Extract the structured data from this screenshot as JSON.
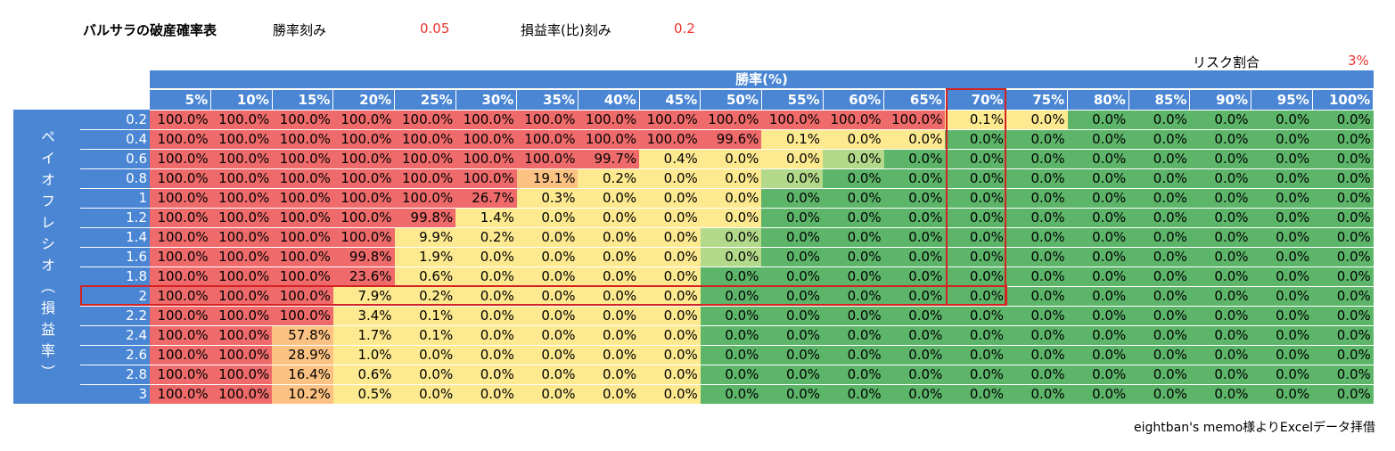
{
  "header": {
    "title": "バルサラの破産確率表",
    "win_rate_step_label": "勝率刻み",
    "win_rate_step_value": "0.05",
    "payoff_step_label": "損益率(比)刻み",
    "payoff_step_value": "0.2",
    "risk_label": "リスク割合",
    "risk_value": "3%"
  },
  "table": {
    "column_group_label": "勝率(%)",
    "row_group_label": "ペイオフレシオ（損益率）",
    "columns": [
      "5%",
      "10%",
      "15%",
      "20%",
      "25%",
      "30%",
      "35%",
      "40%",
      "45%",
      "50%",
      "55%",
      "60%",
      "65%",
      "70%",
      "75%",
      "80%",
      "85%",
      "90%",
      "95%",
      "100%"
    ],
    "rows": [
      {
        "label": "0.2",
        "values": [
          "100.0%",
          "100.0%",
          "100.0%",
          "100.0%",
          "100.0%",
          "100.0%",
          "100.0%",
          "100.0%",
          "100.0%",
          "100.0%",
          "100.0%",
          "100.0%",
          "100.0%",
          "0.1%",
          "0.0%",
          "0.0%",
          "0.0%",
          "0.0%",
          "0.0%",
          "0.0%"
        ]
      },
      {
        "label": "0.4",
        "values": [
          "100.0%",
          "100.0%",
          "100.0%",
          "100.0%",
          "100.0%",
          "100.0%",
          "100.0%",
          "100.0%",
          "100.0%",
          "99.6%",
          "0.1%",
          "0.0%",
          "0.0%",
          "0.0%",
          "0.0%",
          "0.0%",
          "0.0%",
          "0.0%",
          "0.0%",
          "0.0%"
        ]
      },
      {
        "label": "0.6",
        "values": [
          "100.0%",
          "100.0%",
          "100.0%",
          "100.0%",
          "100.0%",
          "100.0%",
          "100.0%",
          "99.7%",
          "0.4%",
          "0.0%",
          "0.0%",
          "0.0%",
          "0.0%",
          "0.0%",
          "0.0%",
          "0.0%",
          "0.0%",
          "0.0%",
          "0.0%",
          "0.0%"
        ]
      },
      {
        "label": "0.8",
        "values": [
          "100.0%",
          "100.0%",
          "100.0%",
          "100.0%",
          "100.0%",
          "100.0%",
          "19.1%",
          "0.2%",
          "0.0%",
          "0.0%",
          "0.0%",
          "0.0%",
          "0.0%",
          "0.0%",
          "0.0%",
          "0.0%",
          "0.0%",
          "0.0%",
          "0.0%",
          "0.0%"
        ]
      },
      {
        "label": "1",
        "values": [
          "100.0%",
          "100.0%",
          "100.0%",
          "100.0%",
          "100.0%",
          "26.7%",
          "0.3%",
          "0.0%",
          "0.0%",
          "0.0%",
          "0.0%",
          "0.0%",
          "0.0%",
          "0.0%",
          "0.0%",
          "0.0%",
          "0.0%",
          "0.0%",
          "0.0%",
          "0.0%"
        ]
      },
      {
        "label": "1.2",
        "values": [
          "100.0%",
          "100.0%",
          "100.0%",
          "100.0%",
          "99.8%",
          "1.4%",
          "0.0%",
          "0.0%",
          "0.0%",
          "0.0%",
          "0.0%",
          "0.0%",
          "0.0%",
          "0.0%",
          "0.0%",
          "0.0%",
          "0.0%",
          "0.0%",
          "0.0%",
          "0.0%"
        ]
      },
      {
        "label": "1.4",
        "values": [
          "100.0%",
          "100.0%",
          "100.0%",
          "100.0%",
          "9.9%",
          "0.2%",
          "0.0%",
          "0.0%",
          "0.0%",
          "0.0%",
          "0.0%",
          "0.0%",
          "0.0%",
          "0.0%",
          "0.0%",
          "0.0%",
          "0.0%",
          "0.0%",
          "0.0%",
          "0.0%"
        ]
      },
      {
        "label": "1.6",
        "values": [
          "100.0%",
          "100.0%",
          "100.0%",
          "99.8%",
          "1.9%",
          "0.0%",
          "0.0%",
          "0.0%",
          "0.0%",
          "0.0%",
          "0.0%",
          "0.0%",
          "0.0%",
          "0.0%",
          "0.0%",
          "0.0%",
          "0.0%",
          "0.0%",
          "0.0%",
          "0.0%"
        ]
      },
      {
        "label": "1.8",
        "values": [
          "100.0%",
          "100.0%",
          "100.0%",
          "23.6%",
          "0.6%",
          "0.0%",
          "0.0%",
          "0.0%",
          "0.0%",
          "0.0%",
          "0.0%",
          "0.0%",
          "0.0%",
          "0.0%",
          "0.0%",
          "0.0%",
          "0.0%",
          "0.0%",
          "0.0%",
          "0.0%"
        ]
      },
      {
        "label": "2",
        "values": [
          "100.0%",
          "100.0%",
          "100.0%",
          "7.9%",
          "0.2%",
          "0.0%",
          "0.0%",
          "0.0%",
          "0.0%",
          "0.0%",
          "0.0%",
          "0.0%",
          "0.0%",
          "0.0%",
          "0.0%",
          "0.0%",
          "0.0%",
          "0.0%",
          "0.0%",
          "0.0%"
        ]
      },
      {
        "label": "2.2",
        "values": [
          "100.0%",
          "100.0%",
          "100.0%",
          "3.4%",
          "0.1%",
          "0.0%",
          "0.0%",
          "0.0%",
          "0.0%",
          "0.0%",
          "0.0%",
          "0.0%",
          "0.0%",
          "0.0%",
          "0.0%",
          "0.0%",
          "0.0%",
          "0.0%",
          "0.0%",
          "0.0%"
        ]
      },
      {
        "label": "2.4",
        "values": [
          "100.0%",
          "100.0%",
          "57.8%",
          "1.7%",
          "0.1%",
          "0.0%",
          "0.0%",
          "0.0%",
          "0.0%",
          "0.0%",
          "0.0%",
          "0.0%",
          "0.0%",
          "0.0%",
          "0.0%",
          "0.0%",
          "0.0%",
          "0.0%",
          "0.0%",
          "0.0%"
        ]
      },
      {
        "label": "2.6",
        "values": [
          "100.0%",
          "100.0%",
          "28.9%",
          "1.0%",
          "0.0%",
          "0.0%",
          "0.0%",
          "0.0%",
          "0.0%",
          "0.0%",
          "0.0%",
          "0.0%",
          "0.0%",
          "0.0%",
          "0.0%",
          "0.0%",
          "0.0%",
          "0.0%",
          "0.0%",
          "0.0%"
        ]
      },
      {
        "label": "2.8",
        "values": [
          "100.0%",
          "100.0%",
          "16.4%",
          "0.6%",
          "0.0%",
          "0.0%",
          "0.0%",
          "0.0%",
          "0.0%",
          "0.0%",
          "0.0%",
          "0.0%",
          "0.0%",
          "0.0%",
          "0.0%",
          "0.0%",
          "0.0%",
          "0.0%",
          "0.0%",
          "0.0%"
        ]
      },
      {
        "label": "3",
        "values": [
          "100.0%",
          "100.0%",
          "10.2%",
          "0.5%",
          "0.0%",
          "0.0%",
          "0.0%",
          "0.0%",
          "0.0%",
          "0.0%",
          "0.0%",
          "0.0%",
          "0.0%",
          "0.0%",
          "0.0%",
          "0.0%",
          "0.0%",
          "0.0%",
          "0.0%",
          "0.0%"
        ]
      }
    ],
    "cell_fill": [
      "RRRRRRRRRRRRRYYGGGGG",
      "RRRRRRRRRRYYYGGGGGGG",
      "RRRRRRRRYYYLGGGGGGGG",
      "RRRRRROYYYLGGGGGGGGG",
      "RRRRRRYYYYGGGGGGGGGG",
      "RRRRRYYYYYGGGGGGGGGG",
      "RRRRYYYYYLGGGGGGGGGG",
      "RRRRYYYYYLGGGGGGGGGG",
      "RRRRYYYYYGGGGGGGGGGG",
      "RRRYYYYYYGGGGGGGGGGG",
      "RRRYYYYYYGGGGGGGGGGG",
      "RROYYYYYYGGGGGGGGGGG",
      "RROYYYYYYGGGGGGGGGGG",
      "RROYYYYYYGGGGGGGGGGG",
      "RROYYYYYYGGGGGGGGGGG"
    ],
    "colors": {
      "R": "#ef6b6b",
      "O": "#fcc283",
      "Y": "#fde98f",
      "L": "#b3d98a",
      "G": "#5db56a",
      "header_blue": "#4a86d4",
      "highlight_red": "#d42222",
      "accent_red": "#e8342c"
    },
    "highlight": {
      "column": "70%",
      "row": "2"
    }
  },
  "footer": {
    "credit": "eightban's memo様よりExcelデータ拝借"
  }
}
